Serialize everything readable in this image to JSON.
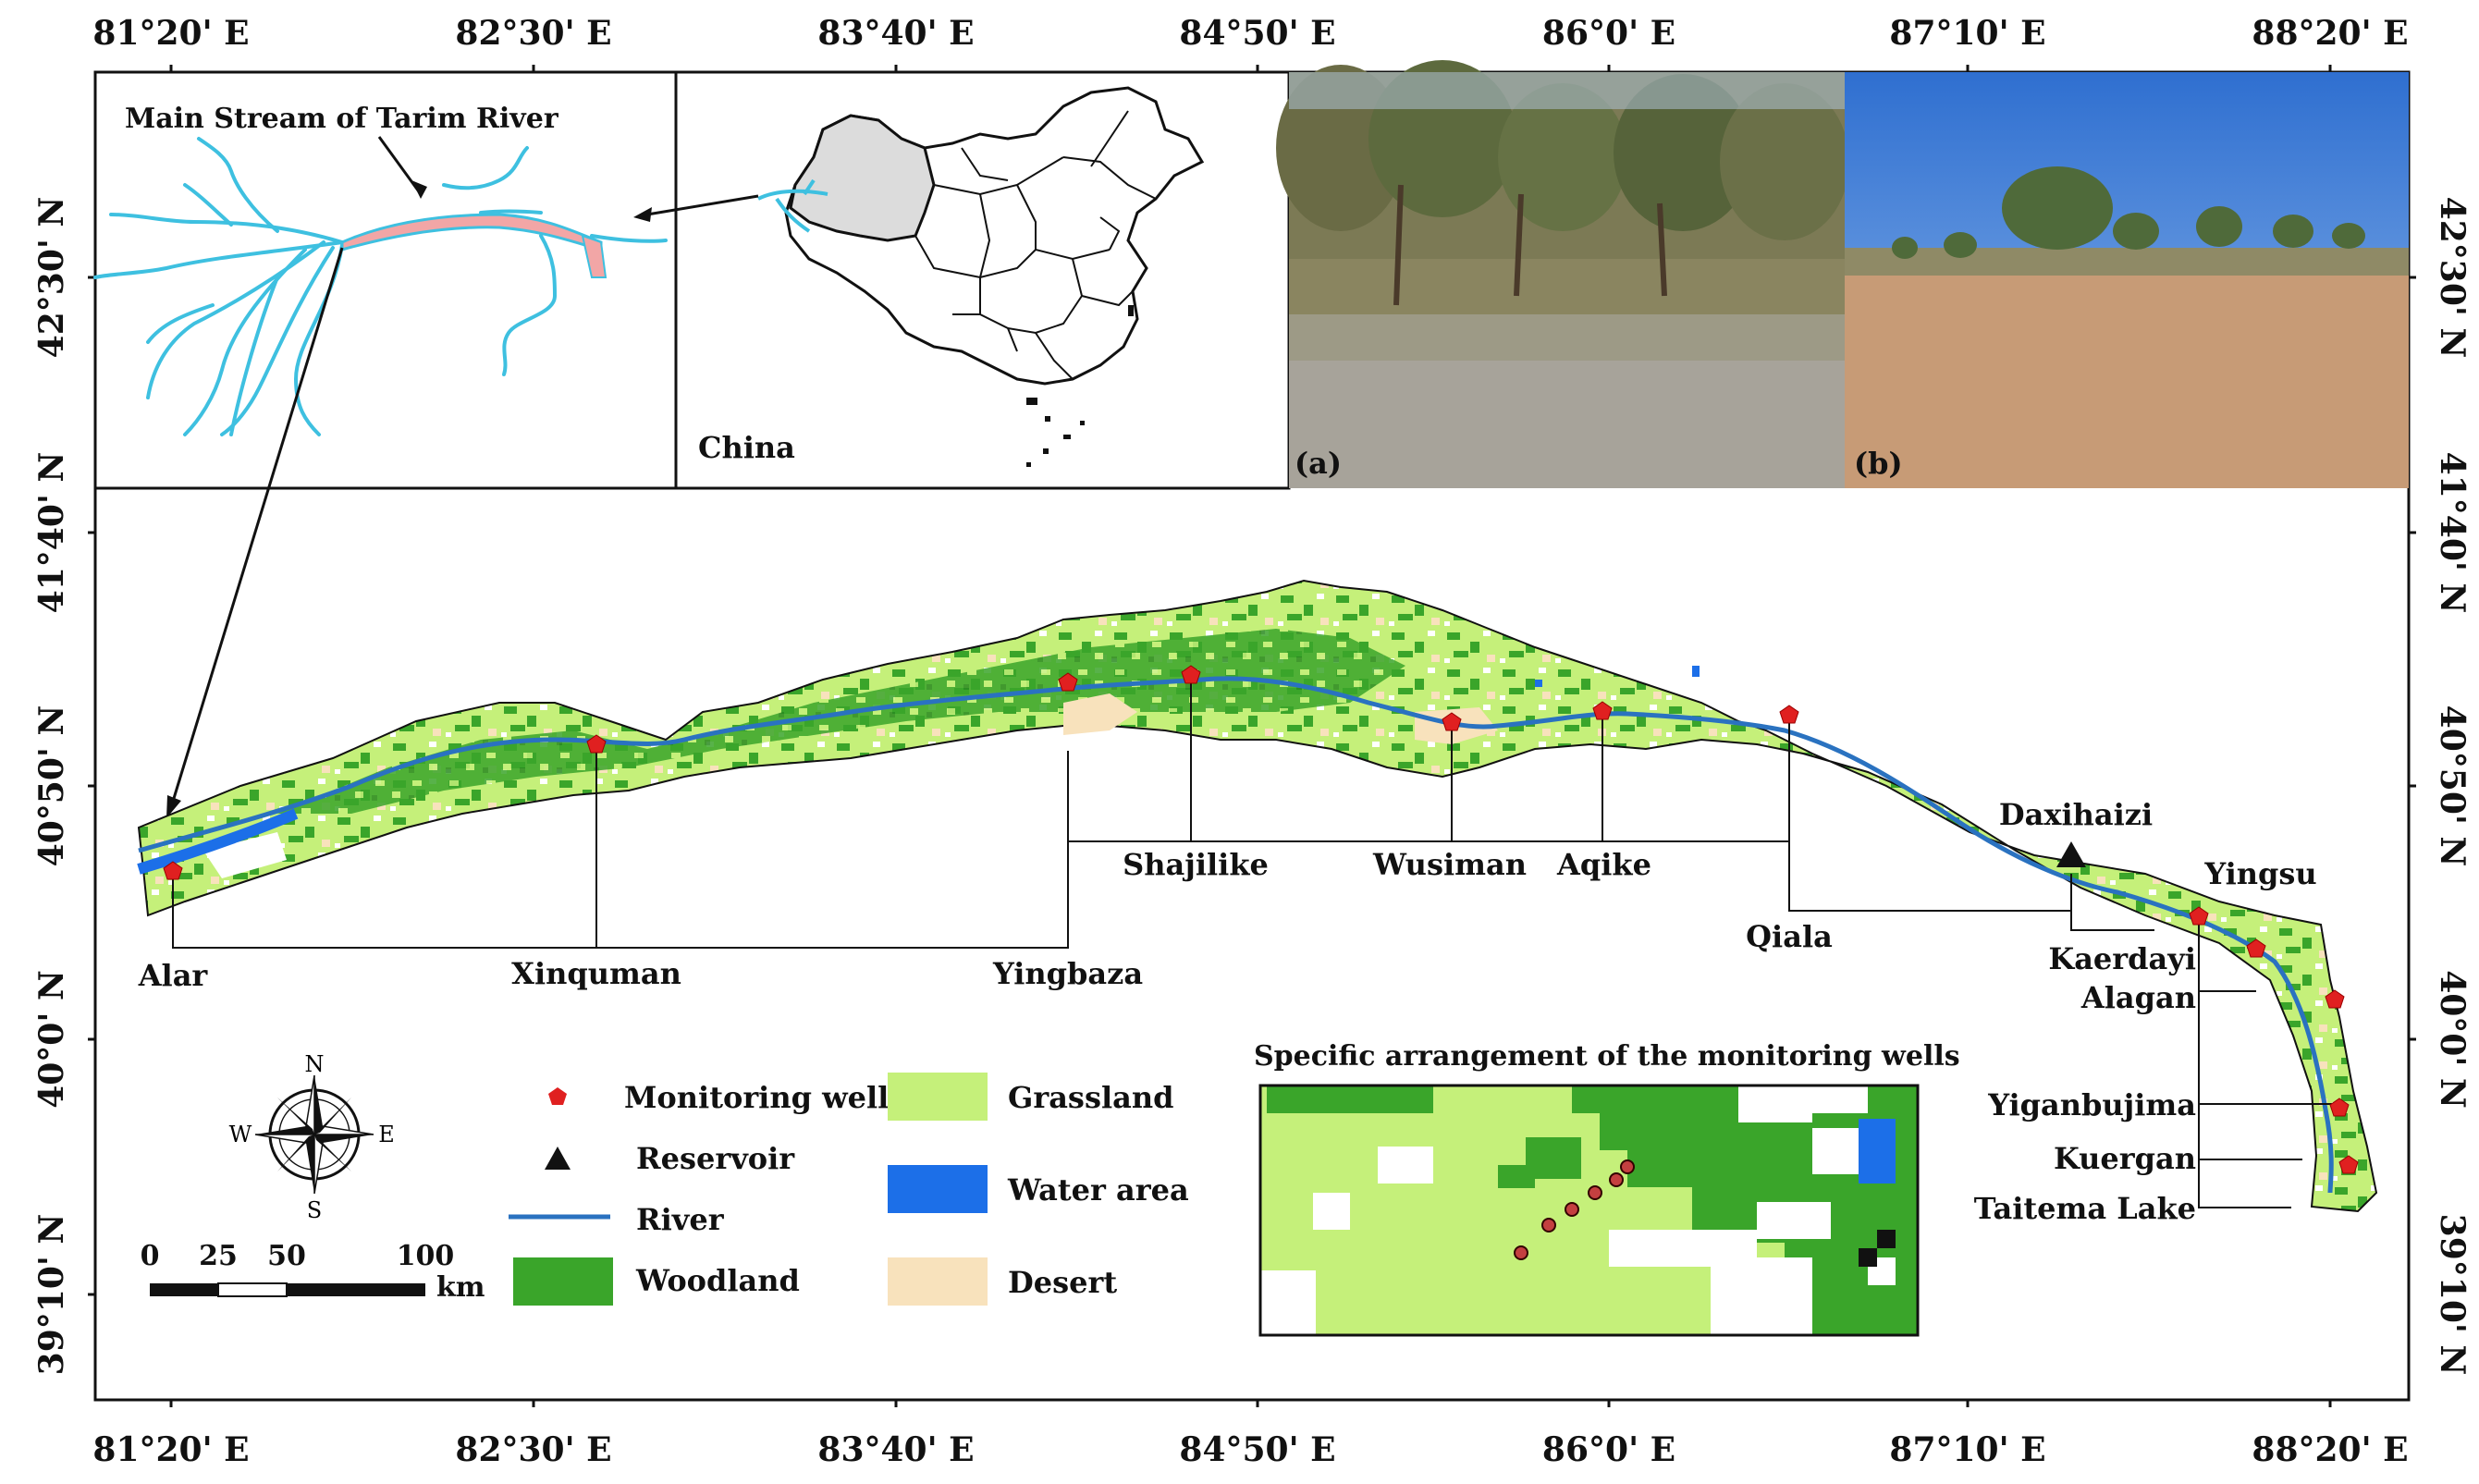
{
  "coords": {
    "top": [
      "81°20' E",
      "82°30' E",
      "83°40' E",
      "84°50' E",
      "86°0' E",
      "87°10' E",
      "88°20' E"
    ],
    "bottom": [
      "81°20' E",
      "82°30' E",
      "83°40' E",
      "84°50' E",
      "86°0' E",
      "87°10' E",
      "88°20' E"
    ],
    "left": [
      "42°30' N",
      "41°40' N",
      "40°50' N",
      "40°0' N",
      "39°10' N"
    ],
    "right": [
      "42°30' N",
      "41°40' N",
      "40°50' N",
      "40°0' N",
      "39°10' N"
    ]
  },
  "inset_tarim": {
    "title": "Main Stream of Tarim River"
  },
  "inset_china": {
    "label": "China"
  },
  "photos": {
    "a": "(a)",
    "b": "(b)"
  },
  "sites": {
    "alar": "Alar",
    "xinquman": "Xinquman",
    "yingbaza": "Yingbaza",
    "shajilike": "Shajilike",
    "wusiman": "Wusiman",
    "aqike": "Aqike",
    "qiala": "Qiala",
    "daxihaizi": "Daxihaizi",
    "yingsu": "Yingsu",
    "kaerdayi": "Kaerdayi",
    "alagan": "Alagan",
    "yiganbujima": "Yiganbujima",
    "kuergan": "Kuergan",
    "taitema": "Taitema Lake"
  },
  "compass": {
    "n": "N",
    "s": "S",
    "e": "E",
    "w": "W"
  },
  "scale": {
    "ticks": [
      "0",
      "25",
      "50",
      "100"
    ],
    "unit": "km"
  },
  "legend": {
    "monitoring_well": "Monitoring well",
    "reservoir": "Reservoir",
    "river": "River",
    "woodland": "Woodland",
    "grassland": "Grassland",
    "water_area": "Water area",
    "desert": "Desert"
  },
  "detail_inset": {
    "title": "Specific arrangement of the monitoring wells"
  },
  "colors": {
    "woodland": "#3aa52a",
    "grassland": "#c5f07a",
    "water": "#1c6fe8",
    "desert": "#f8e2bc",
    "river": "#2a72c0",
    "inset_river": "#3ec0e0",
    "well": "#e02020"
  }
}
